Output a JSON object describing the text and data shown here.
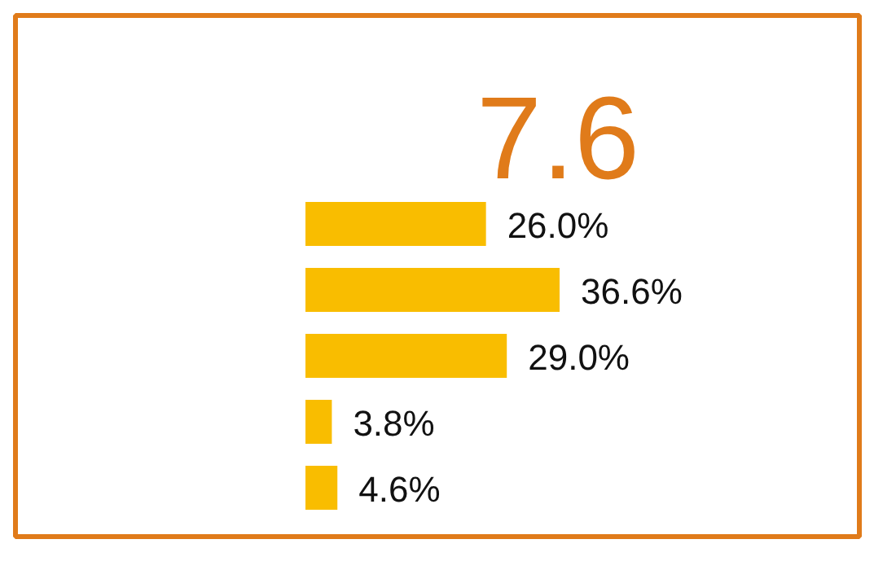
{
  "chart_data": {
    "type": "bar",
    "orientation": "horizontal",
    "title": "7.6",
    "categories": [
      null,
      null,
      null,
      null,
      null
    ],
    "values": [
      26.0,
      36.6,
      29.0,
      3.8,
      4.6
    ],
    "value_labels": [
      "26.0%",
      "36.6%",
      "29.0%",
      "3.8%",
      "4.6%"
    ],
    "color": "#f9bd00"
  }
}
